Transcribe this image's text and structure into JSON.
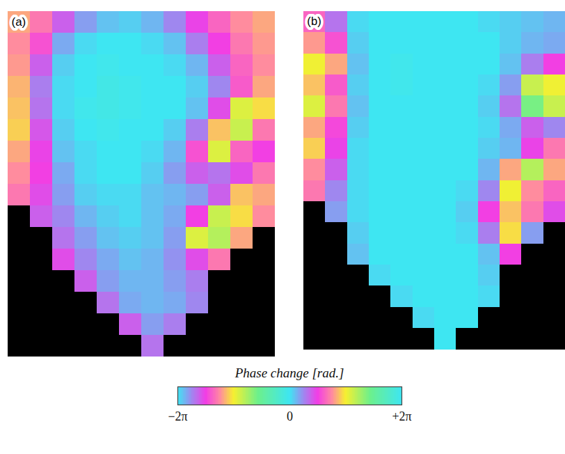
{
  "chart_data": {
    "type": "heatmap",
    "tick_labels": false,
    "panels": [
      {
        "title": "(a)",
        "cells": [
          [
            2.6,
            2.2,
            1.2,
            0.6,
            0.3,
            0.2,
            0.4,
            0.8,
            1.5,
            2.0,
            2.4,
            2.6
          ],
          [
            2.4,
            1.8,
            0.5,
            0.1,
            0,
            0,
            0.1,
            0.3,
            0.9,
            1.6,
            2.2,
            2.5
          ],
          [
            2.5,
            1.2,
            0.2,
            0,
            -0.1,
            0,
            0,
            0.1,
            0.4,
            1.2,
            2.0,
            2.4
          ],
          [
            2.7,
            0.9,
            0.1,
            0,
            -0.2,
            -0.1,
            0,
            0,
            0.2,
            0.8,
            1.9,
            2.6
          ],
          [
            2.8,
            1.0,
            0.1,
            -0.1,
            -0.2,
            -0.1,
            0,
            0,
            0.3,
            1.4,
            3.4,
            3.0
          ],
          [
            2.9,
            1.3,
            0.2,
            0,
            -0.1,
            0,
            0,
            0.2,
            0.9,
            2.8,
            3.6,
            2.2
          ],
          [
            2.6,
            1.5,
            0.3,
            0.1,
            0,
            0,
            0.1,
            0.4,
            1.8,
            3.4,
            2.0,
            1.6
          ],
          [
            2.4,
            1.6,
            0.5,
            0.1,
            0,
            0,
            0.2,
            0.6,
            1.2,
            1.0,
            1.4,
            2.2
          ],
          [
            2.2,
            1.4,
            0.6,
            0.2,
            0.1,
            0.1,
            0.3,
            0.4,
            0.6,
            1.2,
            2.8,
            2.6
          ],
          [
            null,
            1.2,
            0.8,
            0.4,
            0.2,
            0.1,
            0.3,
            0.5,
            1.6,
            3.6,
            3.0,
            2.4
          ],
          [
            null,
            null,
            1.0,
            0.6,
            0.3,
            0.2,
            0.3,
            0.6,
            3.4,
            3.8,
            2.6,
            null
          ],
          [
            null,
            null,
            1.4,
            0.8,
            0.5,
            0.3,
            0.4,
            0.7,
            1.4,
            2.2,
            null,
            null
          ],
          [
            null,
            null,
            null,
            1.2,
            0.6,
            0.4,
            0.4,
            0.6,
            0.9,
            null,
            null,
            null
          ],
          [
            null,
            null,
            null,
            null,
            1.0,
            0.5,
            0.4,
            0.5,
            0.8,
            null,
            null,
            null
          ],
          [
            null,
            null,
            null,
            null,
            null,
            1.2,
            0.6,
            0.9,
            null,
            null,
            null,
            null
          ],
          [
            null,
            null,
            null,
            null,
            null,
            null,
            1.0,
            null,
            null,
            null,
            null,
            null
          ]
        ]
      },
      {
        "title": "(b)",
        "cells": [
          [
            2.0,
            1.0,
            0.1,
            0,
            0,
            0,
            0,
            0,
            0.1,
            0.2,
            0.3,
            0.4
          ],
          [
            2.5,
            1.8,
            0.2,
            0,
            0,
            0,
            0,
            0,
            0,
            0.2,
            0.4,
            0.5
          ],
          [
            3.2,
            2.6,
            0.3,
            0,
            -0.1,
            0,
            0,
            0,
            0,
            0.3,
            0.9,
            1.6
          ],
          [
            2.8,
            1.9,
            0.2,
            0,
            -0.1,
            0,
            0,
            0,
            0.1,
            0.6,
            3.6,
            3.2
          ],
          [
            3.4,
            2.2,
            0.3,
            0,
            0,
            0,
            0,
            0,
            0.2,
            1.0,
            4.4,
            3.6
          ],
          [
            2.6,
            1.7,
            0.2,
            0,
            0,
            0,
            0,
            0,
            0.1,
            0.5,
            1.2,
            0.8
          ],
          [
            2.9,
            1.5,
            0.1,
            0,
            0,
            0,
            0,
            0,
            0.2,
            0.4,
            1.5,
            2.2
          ],
          [
            2.4,
            1.2,
            0.1,
            0,
            0,
            0,
            0,
            0,
            0.4,
            2.6,
            3.8,
            2.6
          ],
          [
            2.2,
            0.8,
            0.1,
            0,
            0,
            0,
            0,
            0.1,
            0.8,
            3.2,
            2.4,
            2.0
          ],
          [
            null,
            0.6,
            0.1,
            0,
            0,
            0,
            0,
            0.2,
            1.6,
            2.8,
            2.2,
            1.4
          ],
          [
            null,
            null,
            0.2,
            0,
            0,
            0,
            0,
            0.1,
            0.9,
            3.0,
            0.6,
            null
          ],
          [
            null,
            null,
            0.3,
            0,
            0,
            0,
            0,
            0,
            0.3,
            1.6,
            null,
            null
          ],
          [
            null,
            null,
            null,
            0.1,
            0,
            0,
            0,
            0,
            0.2,
            null,
            null,
            null
          ],
          [
            null,
            null,
            null,
            null,
            0.1,
            0,
            0,
            0,
            0.1,
            null,
            null,
            null
          ],
          [
            null,
            null,
            null,
            null,
            null,
            0.1,
            0,
            0,
            null,
            null,
            null,
            null
          ],
          [
            null,
            null,
            null,
            null,
            null,
            null,
            0,
            null,
            null,
            null,
            null,
            null
          ]
        ]
      }
    ],
    "colorbar": {
      "label": "Phase change [rad.]",
      "lim": [
        -6.2832,
        6.2832
      ],
      "ticks": [
        {
          "value": -6.2832,
          "label": "−2π"
        },
        0,
        {
          "value": 6.2832,
          "label": "+2π"
        }
      ]
    }
  }
}
